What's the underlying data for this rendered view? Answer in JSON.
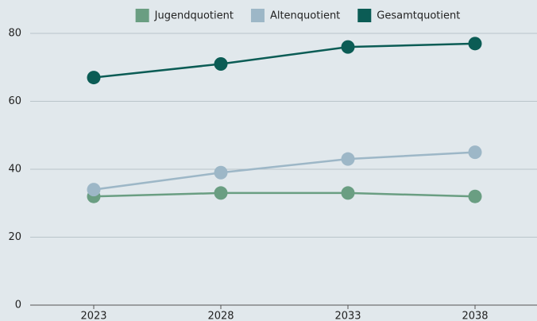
{
  "chart_data": {
    "type": "line",
    "categories": [
      "2023",
      "2028",
      "2033",
      "2038"
    ],
    "series": [
      {
        "name": "Jugendquotient",
        "color": "#6a9e82",
        "values": [
          32,
          33,
          33,
          32
        ]
      },
      {
        "name": "Altenquotient",
        "color": "#9db7c7",
        "values": [
          34,
          39,
          43,
          45
        ]
      },
      {
        "name": "Gesamtquotient",
        "color": "#0b5c55",
        "values": [
          67,
          71,
          76,
          77
        ]
      }
    ],
    "ylim": [
      0,
      80
    ],
    "yticks": [
      0,
      20,
      40,
      60,
      80
    ],
    "grid": true,
    "legend": "top"
  }
}
